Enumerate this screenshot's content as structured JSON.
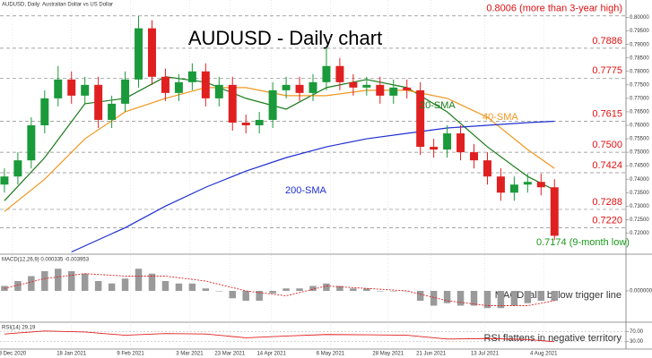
{
  "chart_data": [
    {
      "type": "candlestick",
      "subtitle": "AUDUSD, Daily:  Australian Dollar vs US Dollar",
      "title": "AUDUSD - Daily chart",
      "xlim": [
        -0.33,
        46.33
      ],
      "xticks": [
        {
          "value": 0.6,
          "label": "3 Dec 2020"
        },
        {
          "value": 5.0,
          "label": "18 Jan 2021"
        },
        {
          "value": 9.4,
          "label": "9 Feb 2021"
        },
        {
          "value": 13.8,
          "label": "3 Mar 2021"
        },
        {
          "value": 16.8,
          "label": "23 Mar 2021"
        },
        {
          "value": 19.9,
          "label": "14 Apr 2021"
        },
        {
          "value": 24.3,
          "label": "6 May 2021"
        },
        {
          "value": 28.6,
          "label": "28 May 2021"
        },
        {
          "value": 31.8,
          "label": "21 Jun 2021"
        },
        {
          "value": 35.8,
          "label": "13 Jul 2021"
        },
        {
          "value": 40.2,
          "label": "4 Aug 2021"
        }
      ],
      "ylim": [
        0.7125,
        0.8065
      ],
      "yticks": [
        {
          "value": 0.72,
          "label": "0.72000"
        },
        {
          "value": 0.725,
          "label": "0.72500"
        },
        {
          "value": 0.73,
          "label": "0.73000"
        },
        {
          "value": 0.735,
          "label": "0.73500"
        },
        {
          "value": 0.74,
          "label": "0.74000"
        },
        {
          "value": 0.745,
          "label": "0.74500"
        },
        {
          "value": 0.75,
          "label": "0.75000"
        },
        {
          "value": 0.755,
          "label": "0.75500"
        },
        {
          "value": 0.76,
          "label": "0.76000"
        },
        {
          "value": 0.765,
          "label": "0.76500"
        },
        {
          "value": 0.77,
          "label": "0.77000"
        },
        {
          "value": 0.775,
          "label": "0.77500"
        },
        {
          "value": 0.78,
          "label": "0.78000"
        },
        {
          "value": 0.785,
          "label": "0.78500"
        },
        {
          "value": 0.79,
          "label": "0.79000"
        },
        {
          "value": 0.795,
          "label": "0.79500"
        },
        {
          "value": 0.8,
          "label": "0.80000"
        }
      ],
      "up_color": "#1a9a3a",
      "down_color": "#e02020",
      "open": [
        0.738,
        0.741,
        0.747,
        0.76,
        0.77,
        0.777,
        0.771,
        0.775,
        0.762,
        0.768,
        0.777,
        0.796,
        0.778,
        0.772,
        0.776,
        0.78,
        0.77,
        0.775,
        0.761,
        0.76,
        0.762,
        0.773,
        0.775,
        0.772,
        0.776,
        0.782,
        0.776,
        0.774,
        0.775,
        0.771,
        0.774,
        0.773,
        0.752,
        0.751,
        0.757,
        0.75,
        0.747,
        0.741,
        0.735,
        0.738,
        0.739,
        0.737
      ],
      "high": [
        0.744,
        0.75,
        0.763,
        0.773,
        0.782,
        0.78,
        0.778,
        0.778,
        0.771,
        0.78,
        0.8006,
        0.799,
        0.781,
        0.779,
        0.783,
        0.783,
        0.778,
        0.778,
        0.764,
        0.765,
        0.776,
        0.778,
        0.778,
        0.779,
        0.789,
        0.785,
        0.779,
        0.778,
        0.778,
        0.777,
        0.777,
        0.776,
        0.755,
        0.76,
        0.76,
        0.753,
        0.75,
        0.744,
        0.741,
        0.742,
        0.742,
        0.74
      ],
      "low": [
        0.735,
        0.738,
        0.744,
        0.757,
        0.767,
        0.768,
        0.768,
        0.759,
        0.759,
        0.765,
        0.774,
        0.775,
        0.769,
        0.769,
        0.773,
        0.767,
        0.767,
        0.758,
        0.757,
        0.757,
        0.759,
        0.77,
        0.769,
        0.769,
        0.773,
        0.773,
        0.771,
        0.771,
        0.768,
        0.768,
        0.77,
        0.749,
        0.748,
        0.748,
        0.747,
        0.744,
        0.738,
        0.732,
        0.732,
        0.735,
        0.734,
        0.7174
      ],
      "close": [
        0.741,
        0.747,
        0.76,
        0.77,
        0.777,
        0.771,
        0.775,
        0.762,
        0.768,
        0.777,
        0.796,
        0.778,
        0.772,
        0.776,
        0.78,
        0.77,
        0.775,
        0.761,
        0.76,
        0.762,
        0.773,
        0.775,
        0.772,
        0.776,
        0.782,
        0.776,
        0.774,
        0.775,
        0.771,
        0.774,
        0.773,
        0.752,
        0.751,
        0.757,
        0.75,
        0.747,
        0.741,
        0.735,
        0.738,
        0.739,
        0.737,
        0.719
      ],
      "lines": [
        {
          "name": "20-SMA",
          "color": "#1a7a1a",
          "x": [
            0,
            3,
            6,
            9,
            12,
            15,
            18,
            21,
            24,
            27,
            30,
            33,
            36,
            39,
            41
          ],
          "values": [
            0.732,
            0.748,
            0.768,
            0.77,
            0.778,
            0.776,
            0.77,
            0.766,
            0.774,
            0.777,
            0.774,
            0.765,
            0.752,
            0.741,
            0.736
          ]
        },
        {
          "name": "40-SMA",
          "color": "#f0961e",
          "x": [
            0,
            3,
            6,
            9,
            12,
            15,
            18,
            21,
            24,
            27,
            30,
            33,
            36,
            39,
            41
          ],
          "values": [
            0.728,
            0.74,
            0.755,
            0.765,
            0.77,
            0.774,
            0.774,
            0.771,
            0.771,
            0.773,
            0.773,
            0.77,
            0.763,
            0.751,
            0.744
          ]
        },
        {
          "name": "200-SMA",
          "color": "#1f2fd0",
          "x": [
            5,
            9,
            12,
            15,
            18,
            21,
            24,
            27,
            30,
            33,
            36,
            39,
            41
          ],
          "values": [
            0.713,
            0.722,
            0.73,
            0.737,
            0.743,
            0.748,
            0.752,
            0.755,
            0.757,
            0.759,
            0.76,
            0.761,
            0.7615
          ]
        }
      ],
      "levels": [
        {
          "value": 0.8006,
          "label": "0.8006 (more than 3-year high)",
          "color": "#e01010",
          "dashed": true
        },
        {
          "value": 0.7886,
          "label": "0.7886",
          "color": "#e01010",
          "dashed": true
        },
        {
          "value": 0.7775,
          "label": "0.7775",
          "color": "#e01010",
          "dashed": true
        },
        {
          "value": 0.7615,
          "label": "0.7615",
          "color": "#e01010",
          "dashed": true
        },
        {
          "value": 0.75,
          "label": "0.7500",
          "color": "#e01010",
          "dashed": true
        },
        {
          "value": 0.7424,
          "label": "0.7424",
          "color": "#e01010",
          "dashed": true
        },
        {
          "value": 0.7288,
          "label": "0.7288",
          "color": "#e01010",
          "dashed": true
        },
        {
          "value": 0.722,
          "label": "0.7220",
          "color": "#e01010",
          "dashed": true
        },
        {
          "value": 0.7174,
          "label": "0.7174 (9-month low)",
          "color": "#1a9a1a",
          "dashed": false
        }
      ]
    },
    {
      "type": "bar",
      "label": "MACD(12,26,9) 0.000335 -0.003953",
      "annotation": "MACD falls below trigger line",
      "ylim": [
        -0.012,
        0.012
      ],
      "yticks": [
        {
          "value": 0,
          "label": "0.000000"
        }
      ],
      "color": "#9a9a9a",
      "values": [
        0.002,
        0.004,
        0.006,
        0.008,
        0.009,
        0.008,
        0.007,
        0.004,
        0.003,
        0.005,
        0.009,
        0.007,
        0.004,
        0.003,
        0.003,
        0.001,
        0.0,
        -0.003,
        -0.004,
        -0.004,
        -0.001,
        0.001,
        0.001,
        0.002,
        0.003,
        0.002,
        0.001,
        0.001,
        0.0,
        0.0,
        0.0,
        -0.004,
        -0.006,
        -0.005,
        -0.006,
        -0.006,
        -0.007,
        -0.007,
        -0.006,
        -0.005,
        -0.004,
        -0.004
      ],
      "signal": {
        "color": "#e02020",
        "x": [
          0,
          3,
          6,
          9,
          12,
          15,
          18,
          21,
          24,
          27,
          30,
          33,
          36,
          39,
          41
        ],
        "values": [
          0.001,
          0.005,
          0.007,
          0.006,
          0.006,
          0.004,
          0.0,
          -0.002,
          0.002,
          0.001,
          0.0,
          -0.004,
          -0.006,
          -0.006,
          -0.004
        ]
      }
    },
    {
      "type": "line",
      "label": "RSI(14) 29.19",
      "annotation": "RSI flattens in negative territory",
      "ylim": [
        0,
        100
      ],
      "yticks": [
        {
          "value": 30,
          "label": "30.00"
        },
        {
          "value": 70,
          "label": "70.00"
        }
      ],
      "color": "#e02020",
      "x": [
        0,
        3,
        6,
        9,
        12,
        15,
        18,
        21,
        24,
        27,
        30,
        33,
        36,
        39,
        41
      ],
      "values": [
        60,
        72,
        68,
        55,
        62,
        60,
        45,
        52,
        58,
        57,
        55,
        40,
        42,
        38,
        29.19
      ]
    }
  ]
}
